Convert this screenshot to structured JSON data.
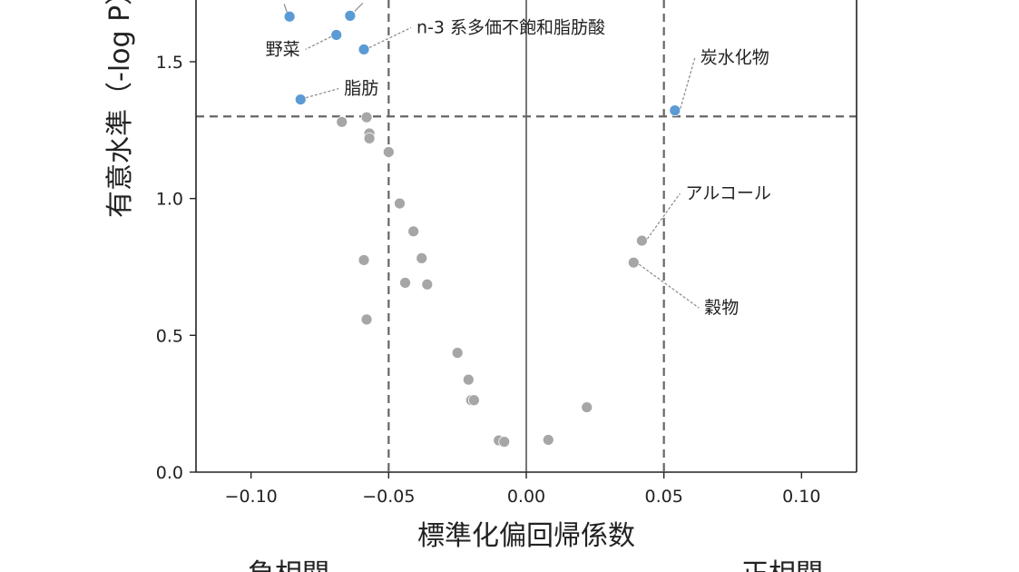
{
  "chart_data": {
    "type": "scatter",
    "title": "",
    "xlabel": "標準化偏回帰係数",
    "ylabel": "有意水準（-log P）",
    "xlim": [
      -0.12,
      0.12
    ],
    "ylim": [
      0.0,
      1.72
    ],
    "xticks": [
      -0.1,
      -0.05,
      0.0,
      0.05,
      0.1
    ],
    "xtick_labels": [
      "−0.10",
      "−0.05",
      "0.00",
      "0.05",
      "0.10"
    ],
    "yticks": [
      0.0,
      0.5,
      1.0,
      1.5
    ],
    "ytick_labels": [
      "0.0",
      "0.5",
      "1.0",
      "1.5"
    ],
    "threshold_y": 1.3,
    "threshold_x": [
      -0.05,
      0.05
    ],
    "zero_line_x": 0.0,
    "grid": false,
    "colors": {
      "significant": "#5b9bd5",
      "nonsignificant": "#a6a6a6",
      "negative": "#6a7dff",
      "positive": "#ff6a6a"
    },
    "series": [
      {
        "group": "significant",
        "points": [
          {
            "x": -0.086,
            "y": 1.665,
            "label": ""
          },
          {
            "x": -0.064,
            "y": 1.668,
            "label": ""
          },
          {
            "x": -0.069,
            "y": 1.598,
            "label": "野菜"
          },
          {
            "x": -0.059,
            "y": 1.545,
            "label": "n-3 系多価不飽和脂肪酸"
          },
          {
            "x": -0.082,
            "y": 1.362,
            "label": "脂肪"
          },
          {
            "x": 0.054,
            "y": 1.322,
            "label": "炭水化物"
          }
        ]
      },
      {
        "group": "nonsignificant",
        "points": [
          {
            "x": -0.067,
            "y": 1.28,
            "label": ""
          },
          {
            "x": -0.058,
            "y": 1.297,
            "label": ""
          },
          {
            "x": -0.057,
            "y": 1.238,
            "label": ""
          },
          {
            "x": -0.057,
            "y": 1.22,
            "label": ""
          },
          {
            "x": -0.05,
            "y": 1.17,
            "label": ""
          },
          {
            "x": -0.046,
            "y": 0.982,
            "label": ""
          },
          {
            "x": -0.041,
            "y": 0.88,
            "label": ""
          },
          {
            "x": -0.038,
            "y": 0.782,
            "label": ""
          },
          {
            "x": -0.059,
            "y": 0.775,
            "label": ""
          },
          {
            "x": -0.044,
            "y": 0.692,
            "label": ""
          },
          {
            "x": -0.036,
            "y": 0.686,
            "label": ""
          },
          {
            "x": -0.058,
            "y": 0.558,
            "label": ""
          },
          {
            "x": -0.025,
            "y": 0.436,
            "label": ""
          },
          {
            "x": -0.021,
            "y": 0.338,
            "label": ""
          },
          {
            "x": -0.02,
            "y": 0.263,
            "label": ""
          },
          {
            "x": -0.019,
            "y": 0.263,
            "label": ""
          },
          {
            "x": -0.01,
            "y": 0.116,
            "label": ""
          },
          {
            "x": -0.008,
            "y": 0.111,
            "label": ""
          },
          {
            "x": 0.008,
            "y": 0.118,
            "label": ""
          },
          {
            "x": 0.022,
            "y": 0.237,
            "label": ""
          },
          {
            "x": 0.042,
            "y": 0.846,
            "label": "アルコール"
          },
          {
            "x": 0.039,
            "y": 0.766,
            "label": "穀物"
          }
        ]
      }
    ],
    "correlation_labels": {
      "negative": "負相関",
      "positive": "正相関"
    }
  }
}
